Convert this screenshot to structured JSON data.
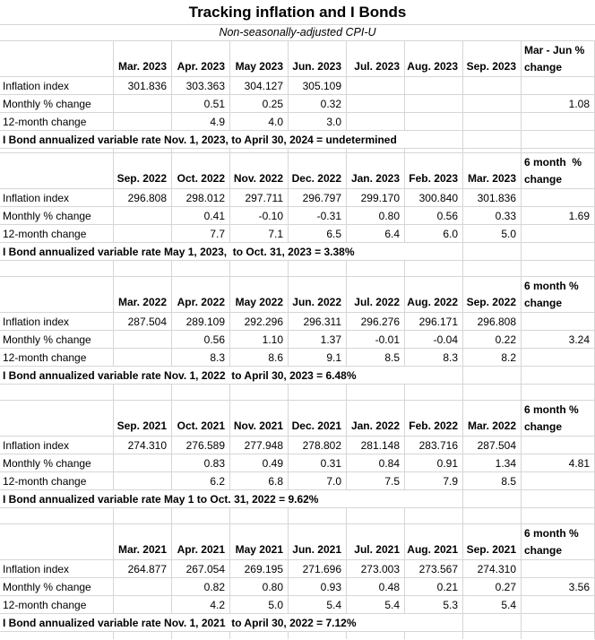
{
  "title": "Tracking inflation and I Bonds",
  "subtitle": "Non-seasonally-adjusted CPI-U",
  "colors": {
    "gridline": "#d6d6d6",
    "text": "#000000",
    "background": "#ffffff"
  },
  "sections": [
    {
      "months": [
        "Mar. 2023",
        "Apr. 2023",
        "May 2023",
        "Jun. 2023",
        "Jul. 2023",
        "Aug. 2023",
        "Sep. 2023"
      ],
      "change_header": "Mar - Jun %\nchange",
      "rows": [
        {
          "label": "Inflation index",
          "values": [
            "301.836",
            "303.363",
            "304.127",
            "305.109",
            "",
            "",
            ""
          ],
          "change": ""
        },
        {
          "label": "Monthly % change",
          "values": [
            "",
            "0.51",
            "0.25",
            "0.32",
            "",
            "",
            ""
          ],
          "change": "1.08"
        },
        {
          "label": "12-month change",
          "values": [
            "",
            "4.9",
            "4.0",
            "3.0",
            "",
            "",
            ""
          ],
          "change": ""
        }
      ],
      "rate_note": "I Bond annualized variable rate Nov. 1, 2023, to April 30, 2024 = undetermined"
    },
    {
      "months": [
        "Sep. 2022",
        "Oct. 2022",
        "Nov. 2022",
        "Dec. 2022",
        "Jan. 2023",
        "Feb. 2023",
        "Mar. 2023"
      ],
      "change_header": "6 month  %\nchange",
      "rows": [
        {
          "label": "Inflation index",
          "values": [
            "296.808",
            "298.012",
            "297.711",
            "296.797",
            "299.170",
            "300.840",
            "301.836"
          ],
          "change": ""
        },
        {
          "label": "Monthly % change",
          "values": [
            "",
            "0.41",
            "-0.10",
            "-0.31",
            "0.80",
            "0.56",
            "0.33"
          ],
          "change": "1.69"
        },
        {
          "label": "12-month change",
          "values": [
            "",
            "7.7",
            "7.1",
            "6.5",
            "6.4",
            "6.0",
            "5.0"
          ],
          "change": ""
        }
      ],
      "rate_note": "I Bond annualized variable rate May 1, 2023,  to Oct. 31, 2023 = 3.38%"
    },
    {
      "months": [
        "Mar. 2022",
        "Apr. 2022",
        "May 2022",
        "Jun. 2022",
        "Jul. 2022",
        "Aug. 2022",
        "Sep. 2022"
      ],
      "change_header": "6 month %\nchange",
      "rows": [
        {
          "label": "Inflation index",
          "values": [
            "287.504",
            "289.109",
            "292.296",
            "296.311",
            "296.276",
            "296.171",
            "296.808"
          ],
          "change": ""
        },
        {
          "label": "Monthly % change",
          "values": [
            "",
            "0.56",
            "1.10",
            "1.37",
            "-0.01",
            "-0.04",
            "0.22"
          ],
          "change": "3.24"
        },
        {
          "label": "12-month change",
          "values": [
            "",
            "8.3",
            "8.6",
            "9.1",
            "8.5",
            "8.3",
            "8.2"
          ],
          "change": ""
        }
      ],
      "rate_note": "I Bond annualized variable rate Nov. 1, 2022  to April 30, 2023 = 6.48%"
    },
    {
      "months": [
        "Sep. 2021",
        "Oct. 2021",
        "Nov. 2021",
        "Dec. 2021",
        "Jan. 2022",
        "Feb. 2022",
        "Mar. 2022"
      ],
      "change_header": "6 month %\nchange",
      "rows": [
        {
          "label": "Inflation index",
          "values": [
            "274.310",
            "276.589",
            "277.948",
            "278.802",
            "281.148",
            "283.716",
            "287.504"
          ],
          "change": ""
        },
        {
          "label": "Monthly % change",
          "values": [
            "",
            "0.83",
            "0.49",
            "0.31",
            "0.84",
            "0.91",
            "1.34"
          ],
          "change": "4.81"
        },
        {
          "label": "12-month change",
          "values": [
            "",
            "6.2",
            "6.8",
            "7.0",
            "7.5",
            "7.9",
            "8.5"
          ],
          "change": ""
        }
      ],
      "rate_note": "I Bond annualized variable rate May 1 to Oct. 31, 2022 = 9.62%"
    },
    {
      "months": [
        "Mar. 2021",
        "Apr. 2021",
        "May 2021",
        "Jun. 2021",
        "Jul. 2021",
        "Aug. 2021",
        "Sep. 2021"
      ],
      "change_header": "6 month %\nchange",
      "rows": [
        {
          "label": "Inflation index",
          "values": [
            "264.877",
            "267.054",
            "269.195",
            "271.696",
            "273.003",
            "273.567",
            "274.310"
          ],
          "change": ""
        },
        {
          "label": "Monthly % change",
          "values": [
            "",
            "0.82",
            "0.80",
            "0.93",
            "0.48",
            "0.21",
            "0.27"
          ],
          "change": "3.56"
        },
        {
          "label": "12-month change",
          "values": [
            "",
            "4.2",
            "5.0",
            "5.4",
            "5.4",
            "5.3",
            "5.4"
          ],
          "change": ""
        }
      ],
      "rate_note": "I Bond annualized variable rate Nov. 1, 2021  to April 30, 2022 = 7.12%"
    }
  ]
}
